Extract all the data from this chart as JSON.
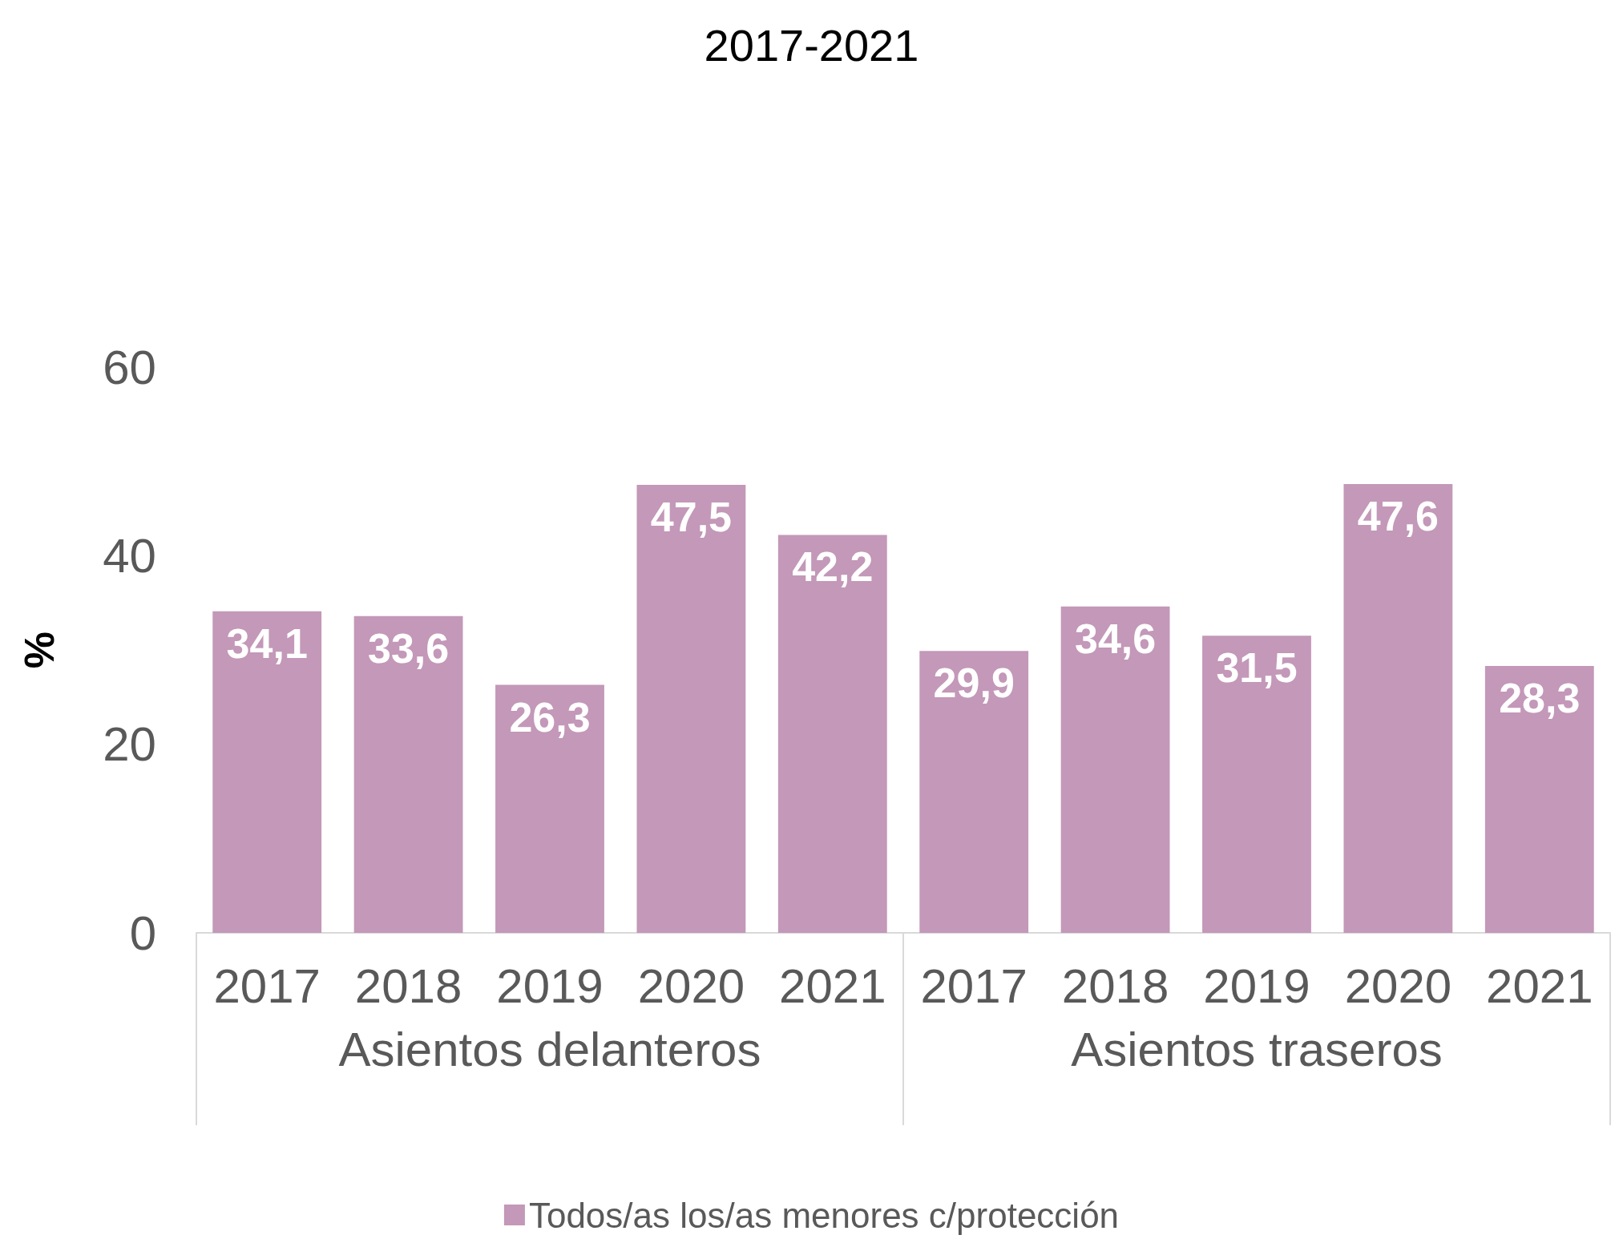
{
  "chart_data": {
    "type": "bar",
    "title": "2017-2021",
    "ylabel": "%",
    "categories": [
      "2017",
      "2018",
      "2019",
      "2020",
      "2021",
      "2017",
      "2018",
      "2019",
      "2020",
      "2021"
    ],
    "series": [
      {
        "name": "Todos/as los/as menores c/protección",
        "color": "#c398b8",
        "values": [
          34.1,
          33.6,
          26.3,
          47.5,
          42.2,
          29.9,
          34.6,
          31.5,
          47.6,
          28.3
        ],
        "value_labels": [
          "34,1",
          "33,6",
          "26,3",
          "47,5",
          "42,2",
          "29,9",
          "34,6",
          "31,5",
          "47,6",
          "28,3"
        ]
      }
    ],
    "annotations": [
      "Asientos delanteros",
      "Asientos traseros"
    ],
    "ylim": [
      0,
      60
    ],
    "yticks": [
      0,
      20,
      40,
      60
    ],
    "grid": false,
    "legend": "bottom"
  }
}
